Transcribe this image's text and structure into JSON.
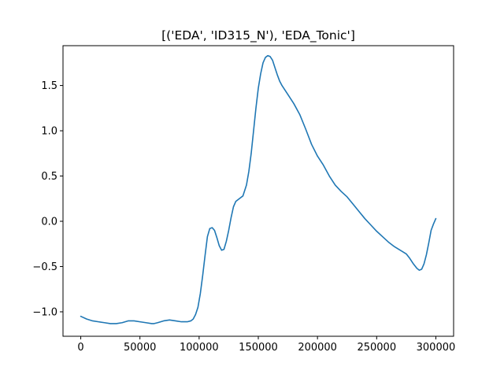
{
  "chart_data": {
    "type": "line",
    "title": "[('EDA', 'ID315_N'), 'EDA_Tonic']",
    "xlabel": "",
    "ylabel": "",
    "xlim": [
      -15000,
      315000
    ],
    "ylim": [
      -1.27,
      1.94
    ],
    "grid": false,
    "legend": "none",
    "x_ticks": [
      0,
      50000,
      100000,
      150000,
      200000,
      250000,
      300000
    ],
    "x_tick_labels": [
      "0",
      "50000",
      "100000",
      "150000",
      "200000",
      "250000",
      "300000"
    ],
    "y_ticks": [
      -1.0,
      -0.5,
      0.0,
      0.5,
      1.0,
      1.5
    ],
    "y_tick_labels": [
      "−1.0",
      "−0.5",
      "0.0",
      "0.5",
      "1.0",
      "1.5"
    ],
    "series": [
      {
        "color": "#1f77b4",
        "x": [
          0,
          5000,
          10000,
          15000,
          20000,
          25000,
          30000,
          35000,
          40000,
          45000,
          50000,
          55000,
          60000,
          62000,
          65000,
          70000,
          75000,
          80000,
          85000,
          90000,
          93000,
          95000,
          97000,
          99000,
          101000,
          103000,
          105000,
          107000,
          109000,
          111000,
          113000,
          115000,
          117000,
          119000,
          121000,
          123000,
          125000,
          127000,
          129000,
          131000,
          134000,
          137000,
          140000,
          142000,
          144000,
          146000,
          148000,
          150000,
          152000,
          154000,
          156000,
          158000,
          160000,
          162000,
          164000,
          166000,
          168000,
          170000,
          173000,
          176000,
          180000,
          185000,
          190000,
          195000,
          200000,
          205000,
          210000,
          215000,
          220000,
          225000,
          230000,
          235000,
          240000,
          245000,
          250000,
          255000,
          260000,
          265000,
          270000,
          275000,
          278000,
          281000,
          284000,
          286000,
          288000,
          290000,
          292000,
          294000,
          296000,
          298000,
          300000
        ],
        "y": [
          -1.05,
          -1.08,
          -1.1,
          -1.11,
          -1.12,
          -1.13,
          -1.13,
          -1.12,
          -1.1,
          -1.1,
          -1.11,
          -1.12,
          -1.13,
          -1.13,
          -1.12,
          -1.1,
          -1.09,
          -1.1,
          -1.11,
          -1.11,
          -1.1,
          -1.08,
          -1.03,
          -0.95,
          -0.8,
          -0.6,
          -0.38,
          -0.17,
          -0.08,
          -0.07,
          -0.1,
          -0.18,
          -0.27,
          -0.32,
          -0.31,
          -0.22,
          -0.1,
          0.04,
          0.16,
          0.22,
          0.25,
          0.28,
          0.4,
          0.55,
          0.75,
          1.0,
          1.25,
          1.47,
          1.63,
          1.75,
          1.81,
          1.83,
          1.82,
          1.78,
          1.7,
          1.62,
          1.55,
          1.5,
          1.44,
          1.38,
          1.3,
          1.18,
          1.02,
          0.85,
          0.72,
          0.62,
          0.5,
          0.4,
          0.33,
          0.27,
          0.19,
          0.11,
          0.03,
          -0.04,
          -0.11,
          -0.17,
          -0.23,
          -0.28,
          -0.32,
          -0.36,
          -0.41,
          -0.47,
          -0.52,
          -0.54,
          -0.53,
          -0.47,
          -0.37,
          -0.24,
          -0.1,
          -0.03,
          0.03
        ]
      }
    ]
  }
}
